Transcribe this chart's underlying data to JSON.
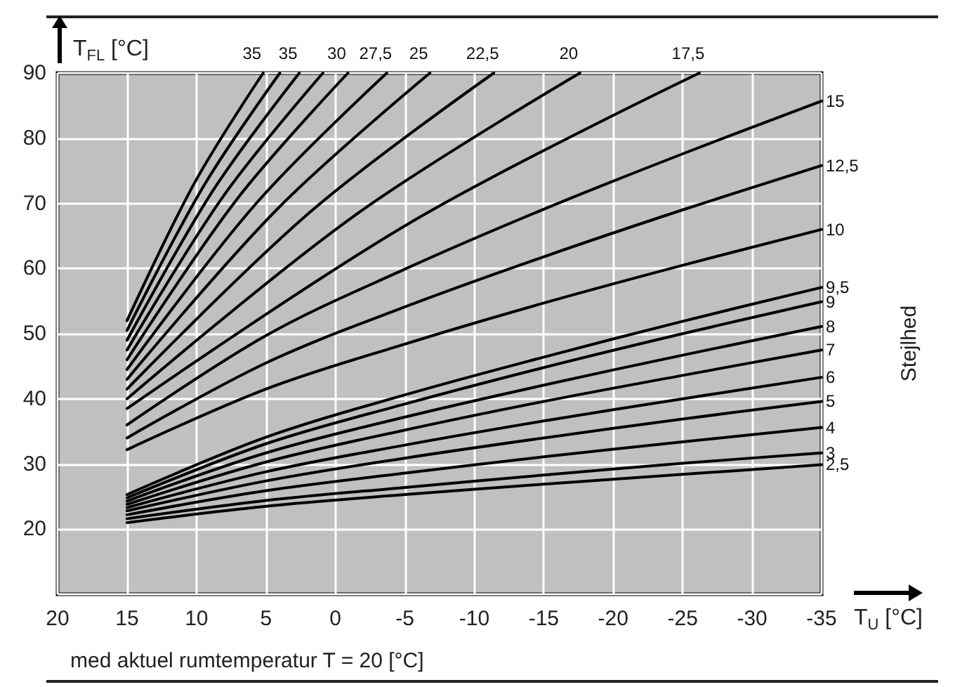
{
  "chart_data": {
    "type": "line",
    "xlabel": "T$_{U}$ [°C]",
    "ylabel": "T$_{FL}$ [°C]",
    "y2label": "Stejlhed",
    "annotations": [
      "med aktuel rumtemperatur T = 20 [°C]"
    ],
    "xlim": [
      20,
      -35
    ],
    "xticks": [
      20,
      15,
      10,
      5,
      0,
      -5,
      -10,
      -15,
      -20,
      -25,
      -30,
      -35
    ],
    "ylim": [
      10,
      90
    ],
    "yticks": [
      20,
      30,
      40,
      50,
      60,
      70,
      80,
      90
    ],
    "grid": true,
    "legend": false,
    "marker": "none",
    "line_style": "solid",
    "series": [
      {
        "name": "35",
        "color": "#000000",
        "x": [
          15,
          10.1,
          5.2
        ],
        "values": [
          52,
          73.3,
          90
        ]
      },
      {
        "color": "#000000",
        "x": [
          15,
          9.5,
          4.0
        ],
        "values": [
          50.5,
          72.6,
          90
        ]
      },
      {
        "name": "35",
        "color": "#000000",
        "x": [
          15,
          8.8,
          2.6
        ],
        "values": [
          49,
          72,
          90
        ]
      },
      {
        "color": "#000000",
        "x": [
          15,
          8.0,
          0.9
        ],
        "values": [
          47.5,
          71.3,
          90
        ]
      },
      {
        "name": "30",
        "color": "#000000",
        "x": [
          15,
          7.1,
          -0.9
        ],
        "values": [
          46,
          70.6,
          90
        ]
      },
      {
        "name": "27,5",
        "color": "#000000",
        "x": [
          15,
          5.7,
          -3.7
        ],
        "values": [
          44.5,
          70,
          90
        ]
      },
      {
        "name": "25",
        "color": "#000000",
        "x": [
          15,
          4.1,
          -6.8
        ],
        "values": [
          43,
          69.3,
          90
        ]
      },
      {
        "name": "22,5",
        "color": "#000000",
        "x": [
          15,
          1.8,
          -11.4
        ],
        "values": [
          41.5,
          68.7,
          90
        ]
      },
      {
        "name": "20",
        "color": "#000000",
        "x": [
          15,
          -1.3,
          -17.6
        ],
        "values": [
          40,
          68,
          90
        ]
      },
      {
        "name": "17,5",
        "color": "#000000",
        "x": [
          15,
          -5.6,
          -26.2
        ],
        "values": [
          38.5,
          67.3,
          90
        ]
      },
      {
        "name": "15",
        "color": "#000000",
        "x": [
          15,
          5,
          -5,
          -15,
          -25,
          -35
        ],
        "values": [
          36,
          49.7,
          59.9,
          69.1,
          77.6,
          85.7
        ]
      },
      {
        "name": "12,5",
        "color": "#000000",
        "x": [
          15,
          5,
          -5,
          -15,
          -25,
          -35
        ],
        "values": [
          34,
          45.5,
          54.1,
          61.8,
          69.0,
          75.8
        ]
      },
      {
        "name": "10",
        "color": "#000000",
        "x": [
          15,
          5,
          -5,
          -15,
          -25,
          -35
        ],
        "values": [
          32.2,
          41.5,
          48.4,
          54.7,
          60.5,
          66
        ]
      },
      {
        "name": "9,5",
        "color": "#000000",
        "x": [
          15,
          5,
          -5,
          -15,
          -25,
          -35
        ],
        "values": [
          25.3,
          34.1,
          40.6,
          46.4,
          51.9,
          57.1
        ]
      },
      {
        "name": "9",
        "color": "#000000",
        "x": [
          15,
          5,
          -5,
          -15,
          -25,
          -35
        ],
        "values": [
          24.8,
          33.1,
          39.2,
          44.8,
          50.0,
          54.9
        ]
      },
      {
        "name": "8",
        "color": "#000000",
        "x": [
          15,
          5,
          -5,
          -15,
          -25,
          -35
        ],
        "values": [
          24.3,
          31.7,
          37.2,
          42.1,
          46.7,
          51.1
        ]
      },
      {
        "name": "7",
        "color": "#000000",
        "x": [
          15,
          5,
          -5,
          -15,
          -25,
          -35
        ],
        "values": [
          23.8,
          30.3,
          35.2,
          39.6,
          43.6,
          47.5
        ]
      },
      {
        "name": "6",
        "color": "#000000",
        "x": [
          15,
          5,
          -5,
          -15,
          -25,
          -35
        ],
        "values": [
          23.3,
          28.8,
          32.9,
          36.6,
          40.0,
          43.3
        ]
      },
      {
        "name": "5",
        "color": "#000000",
        "x": [
          15,
          5,
          -5,
          -15,
          -25,
          -35
        ],
        "values": [
          22.8,
          27.4,
          30.9,
          34.0,
          36.9,
          39.6
        ]
      },
      {
        "name": "4",
        "color": "#000000",
        "x": [
          15,
          5,
          -5,
          -15,
          -25,
          -35
        ],
        "values": [
          22.2,
          25.9,
          28.6,
          31.1,
          33.4,
          35.6
        ]
      },
      {
        "name": "3",
        "color": "#000000",
        "x": [
          15,
          5,
          -5,
          -15,
          -25,
          -35
        ],
        "values": [
          21.6,
          24.4,
          26.4,
          28.3,
          30.1,
          31.7
        ]
      },
      {
        "name": "2,5",
        "color": "#000000",
        "x": [
          15,
          5,
          -5,
          -15,
          -25,
          -35
        ],
        "values": [
          21.0,
          23.5,
          25.3,
          26.9,
          28.4,
          29.9
        ]
      }
    ]
  }
}
